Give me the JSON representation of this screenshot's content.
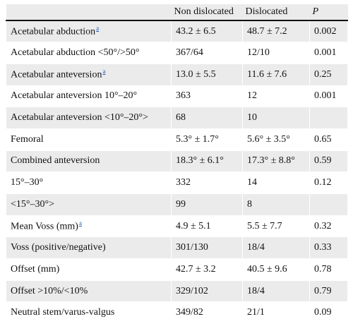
{
  "header": {
    "col0": "",
    "col1": "Non dislocated",
    "col2": "Dislocated",
    "col3": "P"
  },
  "rows": [
    {
      "label": "Acetabular abduction",
      "fn": "a",
      "c1": "43.2 ± 6.5",
      "c2": "48.7 ± 7.2",
      "c3": "0.002"
    },
    {
      "label": "Acetabular abduction <50°/>50°",
      "fn": "",
      "c1": "367/64",
      "c2": "12/10",
      "c3": "0.001"
    },
    {
      "label": "Acetabular anteversion",
      "fn": "a",
      "c1": "13.0 ± 5.5",
      "c2": "11.6 ± 7.6",
      "c3": "0.25"
    },
    {
      "label": "Acetabular anteversion 10°–20°",
      "fn": "",
      "c1": "363",
      "c2": "12",
      "c3": "0.001"
    },
    {
      "label": "Acetabular anteversion <10°–20°>",
      "fn": "",
      "c1": "68",
      "c2": "10",
      "c3": ""
    },
    {
      "label": "Femoral",
      "fn": "",
      "c1": "5.3° ± 1.7°",
      "c2": "5.6° ± 3.5°",
      "c3": "0.65"
    },
    {
      "label": "Combined anteversion",
      "fn": "",
      "c1": "18.3° ± 6.1°",
      "c2": "17.3° ± 8.8°",
      "c3": "0.59"
    },
    {
      "label": "15°–30°",
      "fn": "",
      "c1": "332",
      "c2": "14",
      "c3": "0.12"
    },
    {
      "label": "<15°–30°>",
      "fn": "",
      "c1": "99",
      "c2": "8",
      "c3": ""
    },
    {
      "label": "Mean Voss (mm)",
      "fn": "a",
      "c1": "4.9 ± 5.1",
      "c2": "5.5 ± 7.7",
      "c3": "0.32"
    },
    {
      "label": "Voss (positive/negative)",
      "fn": "",
      "c1": "301/130",
      "c2": "18/4",
      "c3": "0.33"
    },
    {
      "label": "Offset (mm)",
      "fn": "",
      "c1": "42.7 ± 3.2",
      "c2": "40.5 ± 9.6",
      "c3": "0.78"
    },
    {
      "label": "Offset >10%/<10%",
      "fn": "",
      "c1": "329/102",
      "c2": "18/4",
      "c3": "0.79"
    },
    {
      "label": "Neutral stem/varus-valgus",
      "fn": "",
      "c1": "349/82",
      "c2": "21/1",
      "c3": "0.09"
    }
  ]
}
